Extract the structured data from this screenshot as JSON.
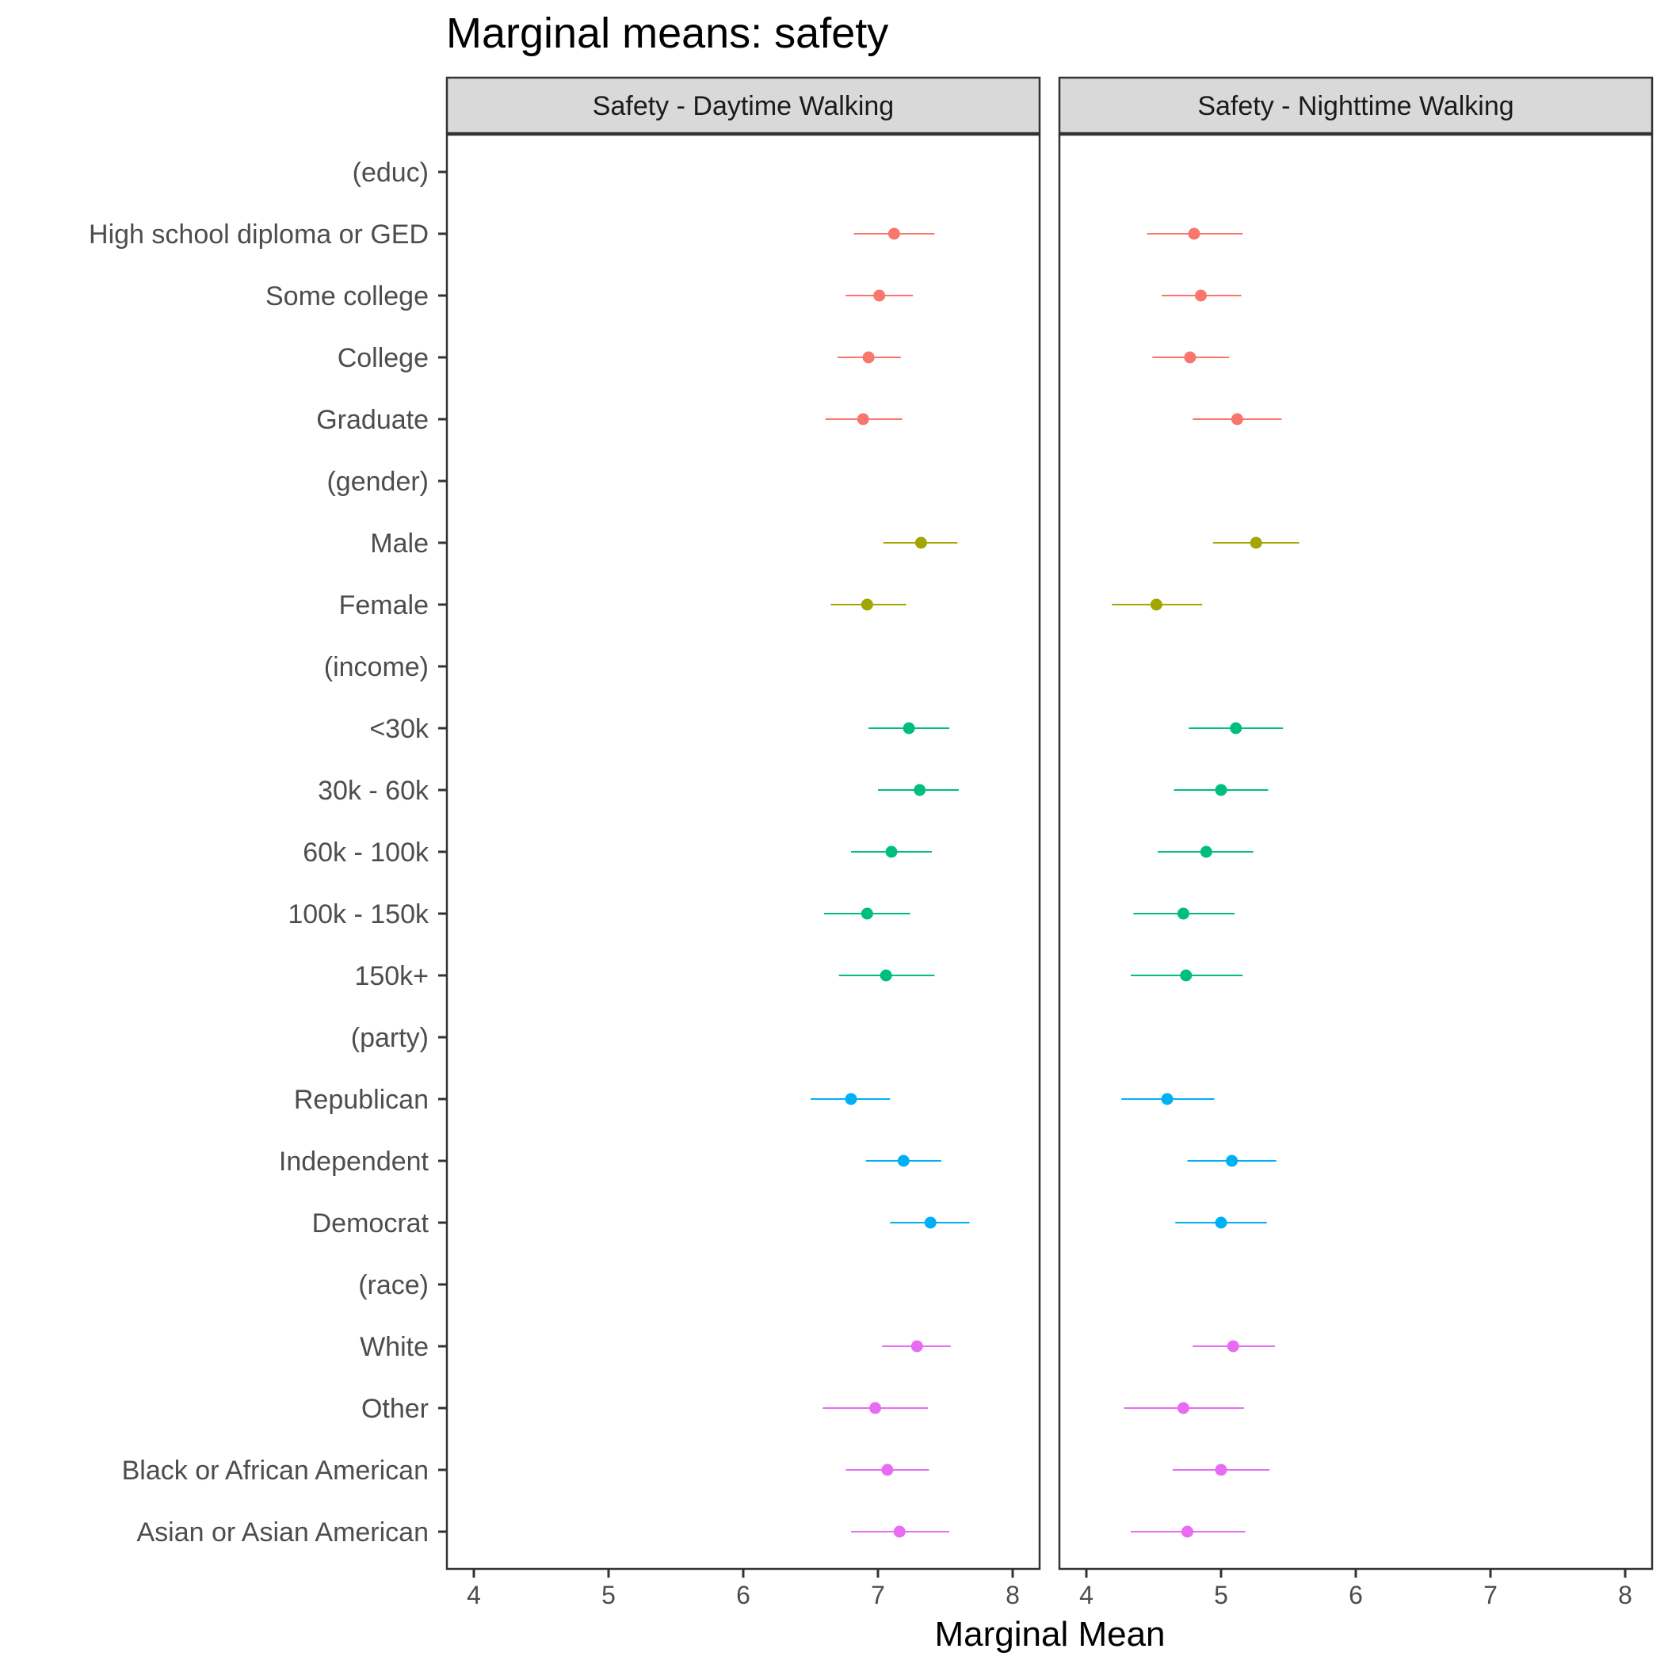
{
  "chart_data": {
    "type": "scatter",
    "title": "Marginal means: safety",
    "xlabel": "Marginal Mean",
    "ylabel": "",
    "xlim": [
      3.8,
      8.2
    ],
    "xticks": [
      4,
      5,
      6,
      7,
      8
    ],
    "grid": false,
    "legend": "none",
    "panels": [
      "Safety - Daytime Walking",
      "Safety - Nighttime Walking"
    ],
    "categories": [
      "(educ)",
      "High school diploma or GED",
      "Some college",
      "College",
      "Graduate",
      "(gender)",
      "Male",
      "Female",
      "(income)",
      "<30k",
      "30k - 60k",
      "60k - 100k",
      "100k - 150k",
      "150k+",
      "(party)",
      "Republican",
      "Independent",
      "Democrat",
      "(race)",
      "White",
      "Other",
      "Black or African American",
      "Asian or Asian American"
    ],
    "group_colors": {
      "educ": "#F8766D",
      "gender": "#A3A500",
      "income": "#00BF7D",
      "party": "#00B0F6",
      "race": "#E76BF3"
    },
    "series": [
      {
        "panel": "Safety - Daytime Walking",
        "points": [
          {
            "level": "High school diploma or GED",
            "group": "educ",
            "estimate": 7.12,
            "lower": 6.82,
            "upper": 7.42
          },
          {
            "level": "Some college",
            "group": "educ",
            "estimate": 7.01,
            "lower": 6.76,
            "upper": 7.26
          },
          {
            "level": "College",
            "group": "educ",
            "estimate": 6.93,
            "lower": 6.7,
            "upper": 7.17
          },
          {
            "level": "Graduate",
            "group": "educ",
            "estimate": 6.89,
            "lower": 6.61,
            "upper": 7.18
          },
          {
            "level": "Male",
            "group": "gender",
            "estimate": 7.32,
            "lower": 7.04,
            "upper": 7.59
          },
          {
            "level": "Female",
            "group": "gender",
            "estimate": 6.92,
            "lower": 6.65,
            "upper": 7.21
          },
          {
            "level": "<30k",
            "group": "income",
            "estimate": 7.23,
            "lower": 6.93,
            "upper": 7.53
          },
          {
            "level": "30k - 60k",
            "group": "income",
            "estimate": 7.31,
            "lower": 7.0,
            "upper": 7.6
          },
          {
            "level": "60k - 100k",
            "group": "income",
            "estimate": 7.1,
            "lower": 6.8,
            "upper": 7.4
          },
          {
            "level": "100k - 150k",
            "group": "income",
            "estimate": 6.92,
            "lower": 6.6,
            "upper": 7.24
          },
          {
            "level": "150k+",
            "group": "income",
            "estimate": 7.06,
            "lower": 6.71,
            "upper": 7.42
          },
          {
            "level": "Republican",
            "group": "party",
            "estimate": 6.8,
            "lower": 6.5,
            "upper": 7.09
          },
          {
            "level": "Independent",
            "group": "party",
            "estimate": 7.19,
            "lower": 6.91,
            "upper": 7.47
          },
          {
            "level": "Democrat",
            "group": "party",
            "estimate": 7.39,
            "lower": 7.09,
            "upper": 7.68
          },
          {
            "level": "White",
            "group": "race",
            "estimate": 7.29,
            "lower": 7.03,
            "upper": 7.54
          },
          {
            "level": "Other",
            "group": "race",
            "estimate": 6.98,
            "lower": 6.59,
            "upper": 7.37
          },
          {
            "level": "Black or African American",
            "group": "race",
            "estimate": 7.07,
            "lower": 6.76,
            "upper": 7.38
          },
          {
            "level": "Asian or Asian American",
            "group": "race",
            "estimate": 7.16,
            "lower": 6.8,
            "upper": 7.53
          }
        ]
      },
      {
        "panel": "Safety - Nighttime Walking",
        "points": [
          {
            "level": "High school diploma or GED",
            "group": "educ",
            "estimate": 4.8,
            "lower": 4.45,
            "upper": 5.16
          },
          {
            "level": "Some college",
            "group": "educ",
            "estimate": 4.85,
            "lower": 4.56,
            "upper": 5.15
          },
          {
            "level": "College",
            "group": "educ",
            "estimate": 4.77,
            "lower": 4.49,
            "upper": 5.06
          },
          {
            "level": "Graduate",
            "group": "educ",
            "estimate": 5.12,
            "lower": 4.79,
            "upper": 5.45
          },
          {
            "level": "Male",
            "group": "gender",
            "estimate": 5.26,
            "lower": 4.94,
            "upper": 5.58
          },
          {
            "level": "Female",
            "group": "gender",
            "estimate": 4.52,
            "lower": 4.19,
            "upper": 4.86
          },
          {
            "level": "<30k",
            "group": "income",
            "estimate": 5.11,
            "lower": 4.76,
            "upper": 5.46
          },
          {
            "level": "30k - 60k",
            "group": "income",
            "estimate": 5.0,
            "lower": 4.65,
            "upper": 5.35
          },
          {
            "level": "60k - 100k",
            "group": "income",
            "estimate": 4.89,
            "lower": 4.53,
            "upper": 5.24
          },
          {
            "level": "100k - 150k",
            "group": "income",
            "estimate": 4.72,
            "lower": 4.35,
            "upper": 5.1
          },
          {
            "level": "150k+",
            "group": "income",
            "estimate": 4.74,
            "lower": 4.33,
            "upper": 5.16
          },
          {
            "level": "Republican",
            "group": "party",
            "estimate": 4.6,
            "lower": 4.26,
            "upper": 4.95
          },
          {
            "level": "Independent",
            "group": "party",
            "estimate": 5.08,
            "lower": 4.75,
            "upper": 5.41
          },
          {
            "level": "Democrat",
            "group": "party",
            "estimate": 5.0,
            "lower": 4.66,
            "upper": 5.34
          },
          {
            "level": "White",
            "group": "race",
            "estimate": 5.09,
            "lower": 4.79,
            "upper": 5.4
          },
          {
            "level": "Other",
            "group": "race",
            "estimate": 4.72,
            "lower": 4.28,
            "upper": 5.17
          },
          {
            "level": "Black or African American",
            "group": "race",
            "estimate": 5.0,
            "lower": 4.64,
            "upper": 5.36
          },
          {
            "level": "Asian or Asian American",
            "group": "race",
            "estimate": 4.75,
            "lower": 4.33,
            "upper": 5.18
          }
        ]
      }
    ]
  }
}
